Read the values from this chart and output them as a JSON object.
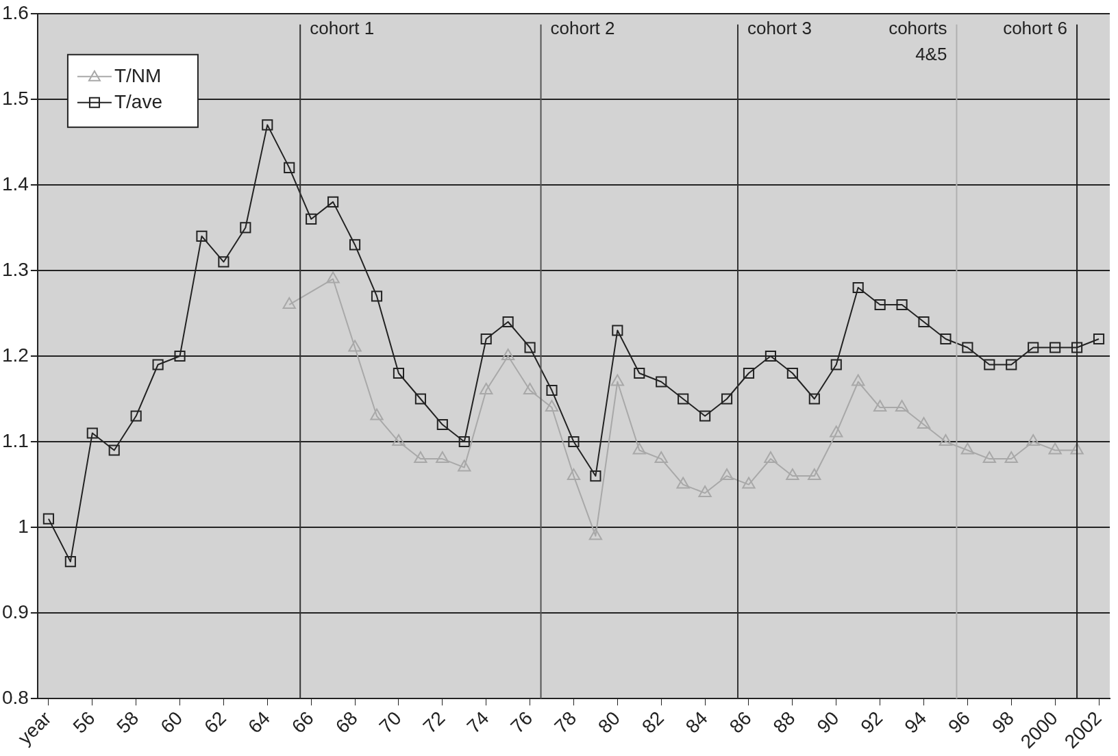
{
  "chart_data": {
    "type": "line",
    "x": [
      1954,
      1955,
      1956,
      1957,
      1958,
      1959,
      1960,
      1961,
      1962,
      1963,
      1964,
      1965,
      1966,
      1967,
      1968,
      1969,
      1970,
      1971,
      1972,
      1973,
      1974,
      1975,
      1976,
      1977,
      1978,
      1979,
      1980,
      1981,
      1982,
      1983,
      1984,
      1985,
      1986,
      1987,
      1988,
      1989,
      1990,
      1991,
      1992,
      1993,
      1994,
      1995,
      1996,
      1997,
      1998,
      1999,
      2000,
      2001,
      2002
    ],
    "series": [
      {
        "name": "T/NM",
        "color": "#a8a8a8",
        "marker": "triangle",
        "values": [
          null,
          null,
          null,
          null,
          null,
          null,
          null,
          null,
          null,
          null,
          null,
          1.26,
          null,
          1.29,
          1.21,
          1.13,
          1.1,
          1.08,
          1.08,
          1.07,
          1.16,
          1.2,
          1.16,
          1.14,
          1.06,
          0.99,
          1.17,
          1.09,
          1.08,
          1.05,
          1.04,
          1.06,
          1.05,
          1.08,
          1.06,
          1.06,
          1.11,
          1.17,
          1.14,
          1.14,
          1.12,
          1.1,
          1.09,
          1.08,
          1.08,
          1.1,
          1.09,
          1.09,
          null
        ]
      },
      {
        "name": "T/ave",
        "color": "#222222",
        "marker": "square",
        "values": [
          1.01,
          0.96,
          1.11,
          1.09,
          1.13,
          1.19,
          1.2,
          1.34,
          1.31,
          1.35,
          1.47,
          1.42,
          1.36,
          1.38,
          1.33,
          1.27,
          1.18,
          1.15,
          1.12,
          1.1,
          1.22,
          1.24,
          1.21,
          1.16,
          1.1,
          1.06,
          1.23,
          1.18,
          1.17,
          1.15,
          1.13,
          1.15,
          1.18,
          1.2,
          1.18,
          1.15,
          1.19,
          1.28,
          1.26,
          1.26,
          1.24,
          1.22,
          1.21,
          1.19,
          1.19,
          1.21,
          1.21,
          1.21,
          1.22
        ]
      }
    ],
    "xlim": [
      1953.5,
      2002.5
    ],
    "xticks": [
      {
        "value": 1954,
        "label": "year"
      },
      {
        "value": 1956,
        "label": "56"
      },
      {
        "value": 1958,
        "label": "58"
      },
      {
        "value": 1960,
        "label": "60"
      },
      {
        "value": 1962,
        "label": "62"
      },
      {
        "value": 1964,
        "label": "64"
      },
      {
        "value": 1966,
        "label": "66"
      },
      {
        "value": 1968,
        "label": "68"
      },
      {
        "value": 1970,
        "label": "70"
      },
      {
        "value": 1972,
        "label": "72"
      },
      {
        "value": 1974,
        "label": "74"
      },
      {
        "value": 1976,
        "label": "76"
      },
      {
        "value": 1978,
        "label": "78"
      },
      {
        "value": 1980,
        "label": "80"
      },
      {
        "value": 1982,
        "label": "82"
      },
      {
        "value": 1984,
        "label": "84"
      },
      {
        "value": 1986,
        "label": "86"
      },
      {
        "value": 1988,
        "label": "88"
      },
      {
        "value": 1990,
        "label": "90"
      },
      {
        "value": 1992,
        "label": "92"
      },
      {
        "value": 1994,
        "label": "94"
      },
      {
        "value": 1996,
        "label": "96"
      },
      {
        "value": 1998,
        "label": "98"
      },
      2000,
      2002
    ],
    "ylim": [
      0.8,
      1.6
    ],
    "yticks": [
      0.8,
      0.9,
      1,
      1.1,
      1.2,
      1.3,
      1.4,
      1.5,
      1.6
    ],
    "grid": "y",
    "legend": "top left",
    "ref_lines": [
      {
        "axis": "x",
        "value": 1965.5,
        "color": "#333333",
        "label": "cohort 1"
      },
      {
        "axis": "x",
        "value": 1976.5,
        "color": "#555555",
        "label": "cohort 2"
      },
      {
        "axis": "x",
        "value": 1985.5,
        "color": "#333333",
        "label": "cohort 3"
      },
      {
        "axis": "x",
        "value": 1995.5,
        "color": "#b0b0b0",
        "label": "cohorts 4&5"
      },
      {
        "axis": "x",
        "value": 2001,
        "color": "#222222",
        "label": "cohort 6"
      }
    ]
  }
}
